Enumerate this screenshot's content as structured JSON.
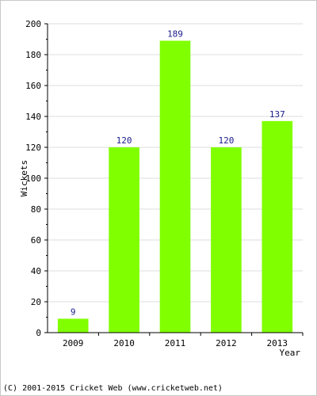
{
  "chart_data": {
    "type": "bar",
    "categories": [
      "2009",
      "2010",
      "2011",
      "2012",
      "2013"
    ],
    "values": [
      9,
      120,
      189,
      120,
      137
    ],
    "value_labels": [
      "9",
      "120",
      "189",
      "120",
      "137"
    ],
    "title": "",
    "xlabel": "Year",
    "ylabel": "Wickets",
    "ylim": [
      0,
      200
    ],
    "yticks": [
      0,
      20,
      40,
      60,
      80,
      100,
      120,
      140,
      160,
      180,
      200
    ],
    "grid": true,
    "bar_color": "#80ff00"
  },
  "footer": {
    "copyright": "(C) 2001-2015 Cricket Web (www.cricketweb.net)"
  }
}
